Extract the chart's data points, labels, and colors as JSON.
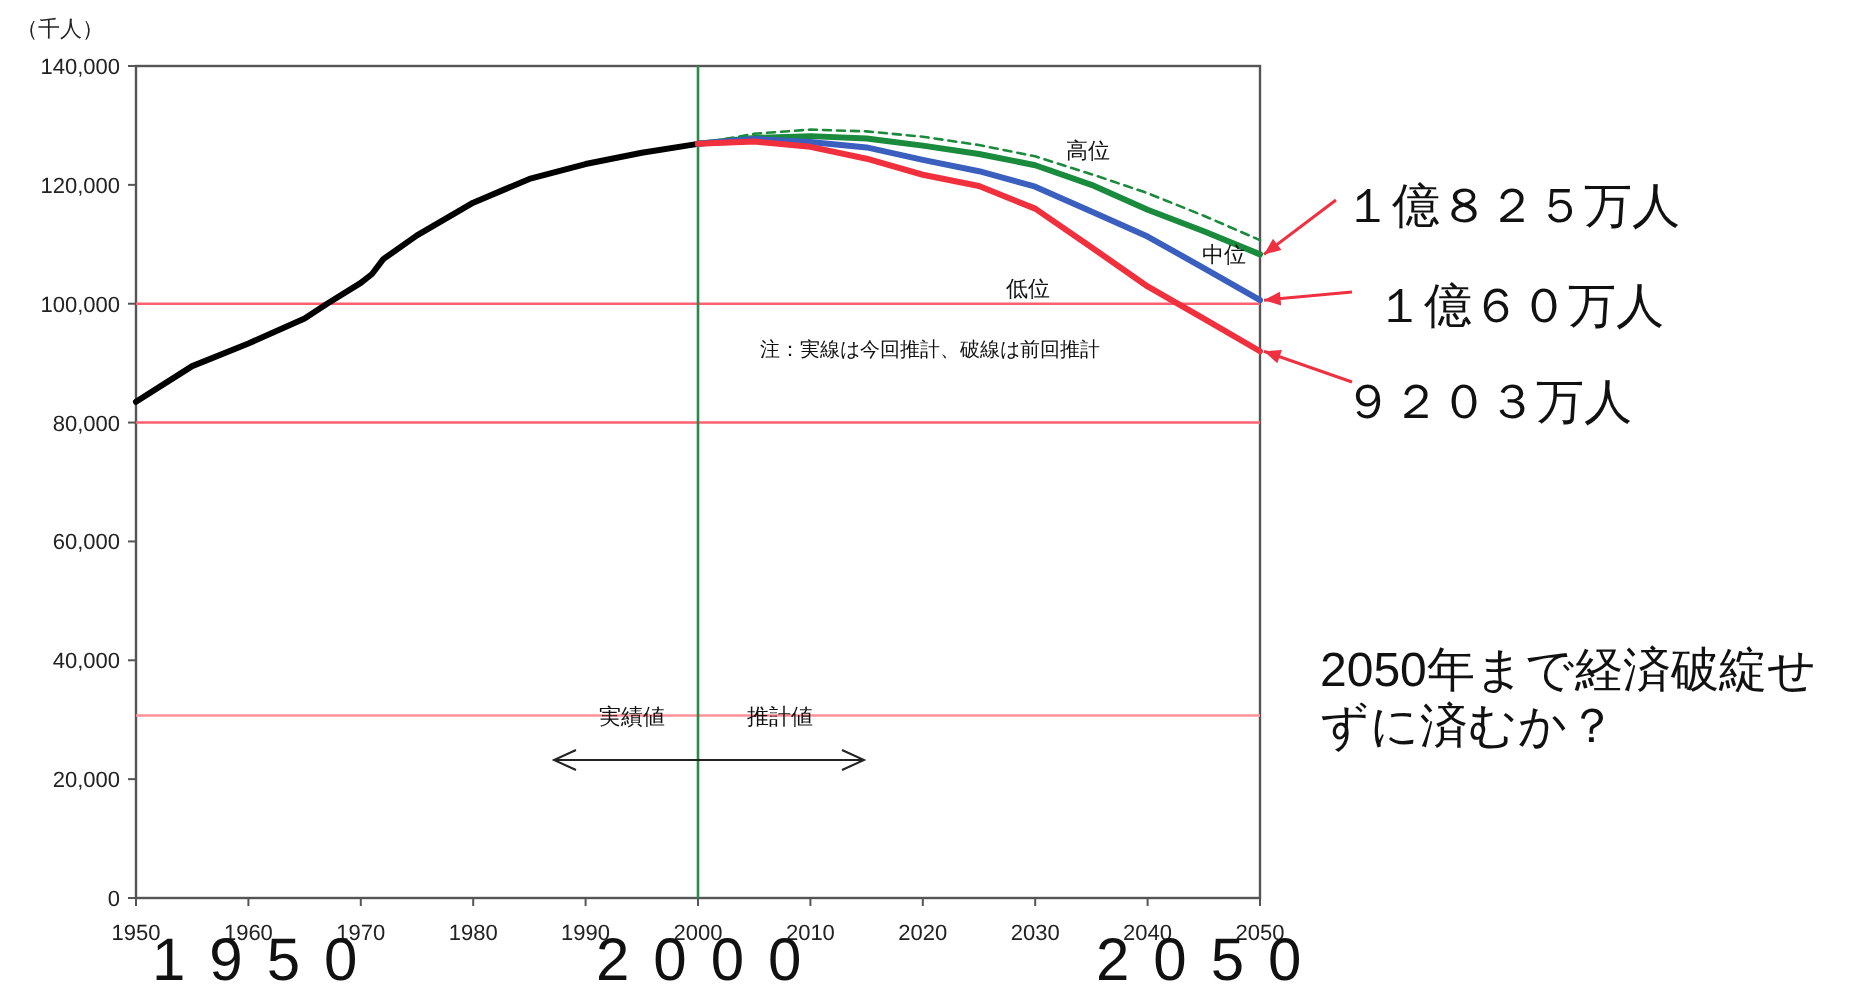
{
  "chart_data": {
    "type": "line",
    "ylabel": "（千人）",
    "xlim": [
      1950,
      2050
    ],
    "xticks": [
      1950,
      1960,
      1970,
      1980,
      1990,
      2000,
      2010,
      2020,
      2030,
      2040,
      2050
    ],
    "ylim": [
      0,
      140000
    ],
    "yticks": [
      {
        "value": 0,
        "label": "0"
      },
      {
        "value": 20000,
        "label": "20,000"
      },
      {
        "value": 40000,
        "label": "40,000"
      },
      {
        "value": 60000,
        "label": "60,000"
      },
      {
        "value": 80000,
        "label": "80,000"
      },
      {
        "value": 100000,
        "label": "100,000"
      },
      {
        "value": 120000,
        "label": "120,000"
      },
      {
        "value": 140000,
        "label": "140,000"
      }
    ],
    "grid": false,
    "marker": "none",
    "series": [
      {
        "color": "#000000",
        "line_style": "solid",
        "x": [
          1950,
          1955,
          1960,
          1965,
          1967,
          1970,
          1971,
          1972,
          1975,
          1980,
          1985,
          1990,
          1995,
          2000
        ],
        "values": [
          83500,
          89500,
          93300,
          97500,
          100000,
          103500,
          105000,
          107500,
          111500,
          117000,
          121000,
          123500,
          125400,
          126900
        ]
      },
      {
        "color": "#1a8a3c",
        "line_style": "dashed",
        "x": [
          2000,
          2005,
          2010,
          2015,
          2020,
          2025,
          2030,
          2035,
          2040,
          2045,
          2050
        ],
        "values": [
          126900,
          128600,
          129300,
          129000,
          128100,
          126700,
          124800,
          121800,
          118600,
          114800,
          110700
        ]
      },
      {
        "color": "#1a8a3c",
        "line_style": "solid",
        "x": [
          2000,
          2005,
          2010,
          2015,
          2020,
          2025,
          2030,
          2035,
          2040,
          2045,
          2050
        ],
        "values": [
          126900,
          127900,
          128200,
          127800,
          126600,
          125200,
          123300,
          120000,
          115800,
          112200,
          108300
        ]
      },
      {
        "color": "#3a5fbf",
        "line_style": "solid",
        "x": [
          2000,
          2005,
          2010,
          2015,
          2020,
          2025,
          2030,
          2035,
          2040,
          2045,
          2050
        ],
        "values": [
          126900,
          127700,
          127200,
          126300,
          124200,
          122300,
          119700,
          115500,
          111300,
          106000,
          100600
        ]
      },
      {
        "color": "#f0303c",
        "line_style": "solid",
        "x": [
          2000,
          2005,
          2010,
          2015,
          2020,
          2025,
          2030,
          2035,
          2040,
          2045,
          2050
        ],
        "values": [
          126900,
          127300,
          126400,
          124400,
          121700,
          119800,
          116000,
          109500,
          102900,
          97500,
          92000
        ]
      }
    ],
    "ref_lines": [
      {
        "axis": "y",
        "value": 100000,
        "color": "#ff6070"
      },
      {
        "axis": "y",
        "value": 80000,
        "color": "#ff6070"
      },
      {
        "axis": "y",
        "value": 30700,
        "color": "#ff9098"
      },
      {
        "axis": "x",
        "value": 2000,
        "color": "#2a8a4a"
      }
    ],
    "annotations": [
      "注：実線は今回推計、破線は前回推計",
      "高位",
      "中位",
      "低位",
      "１億８２５万人",
      "１億６０万人",
      "９２０３万人",
      "実績値",
      "推計値",
      "2050年まで経済破綻せずに済むか？",
      "1950",
      "2000",
      "2050"
    ]
  }
}
